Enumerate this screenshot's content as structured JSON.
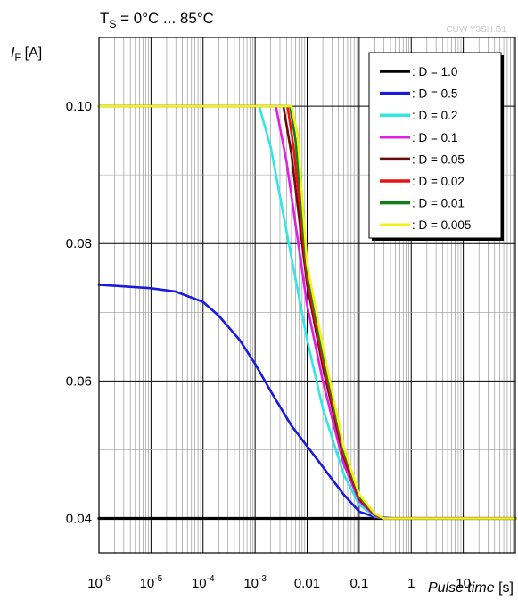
{
  "chart_data": {
    "type": "line",
    "title": "T",
    "title_subscript": "S",
    "title_suffix": " = 0°C ... 85°C",
    "watermark": "CUW Y3SH.B1",
    "ylabel": "I",
    "ylabel_subscript": "F",
    "ylabel_unit": " [A]",
    "xlabel": "Pulse time",
    "xlabel_unit": " [s]",
    "x_scale": "log",
    "xlim": [
      1e-06,
      100
    ],
    "ylim": [
      0.035,
      0.11
    ],
    "x_ticks": [
      {
        "value": 1e-06,
        "base": "10",
        "exp": "-6"
      },
      {
        "value": 1e-05,
        "base": "10",
        "exp": "-5"
      },
      {
        "value": 0.0001,
        "base": "10",
        "exp": "-4"
      },
      {
        "value": 0.001,
        "base": "10",
        "exp": "-3"
      },
      {
        "value": 0.01,
        "base": "0.01",
        "exp": ""
      },
      {
        "value": 0.1,
        "base": "0.1",
        "exp": ""
      },
      {
        "value": 1,
        "base": "1",
        "exp": ""
      },
      {
        "value": 10,
        "base": "10",
        "exp": ""
      }
    ],
    "y_ticks": [
      {
        "value": 0.04,
        "label": "0.04"
      },
      {
        "value": 0.06,
        "label": "0.06"
      },
      {
        "value": 0.08,
        "label": "0.08"
      },
      {
        "value": 0.1,
        "label": "0.10"
      }
    ],
    "grid": true,
    "legend_position": "top-right",
    "series": [
      {
        "name": ": D = 1.0",
        "color": "#000000",
        "x": [
          1e-06,
          100
        ],
        "y": [
          0.04,
          0.04
        ]
      },
      {
        "name": ": D = 0.5",
        "color": "#1a1adb",
        "x": [
          1e-06,
          1e-05,
          3e-05,
          0.0001,
          0.0002,
          0.0005,
          0.001,
          0.002,
          0.005,
          0.01,
          0.02,
          0.05,
          0.1,
          0.2,
          0.5,
          100
        ],
        "y": [
          0.074,
          0.0735,
          0.073,
          0.0715,
          0.0695,
          0.066,
          0.0625,
          0.0585,
          0.0535,
          0.0505,
          0.0475,
          0.0435,
          0.041,
          0.0402,
          0.04,
          0.04
        ]
      },
      {
        "name": ": D = 0.2",
        "color": "#33e6e6",
        "x": [
          1e-06,
          0.0012,
          0.002,
          0.005,
          0.01,
          0.02,
          0.05,
          0.1,
          0.2,
          0.3,
          100
        ],
        "y": [
          0.1,
          0.1,
          0.094,
          0.078,
          0.066,
          0.056,
          0.0465,
          0.042,
          0.0403,
          0.04,
          0.04
        ]
      },
      {
        "name": ": D = 0.1",
        "color": "#e020e0",
        "x": [
          1e-06,
          0.0025,
          0.004,
          0.01,
          0.02,
          0.05,
          0.1,
          0.2,
          0.3,
          100
        ],
        "y": [
          0.1,
          0.1,
          0.092,
          0.071,
          0.06,
          0.048,
          0.0425,
          0.0404,
          0.04,
          0.04
        ]
      },
      {
        "name": ": D = 0.05",
        "color": "#6b0d0d",
        "x": [
          1e-06,
          0.0035,
          0.005,
          0.01,
          0.02,
          0.05,
          0.1,
          0.2,
          0.3,
          100
        ],
        "y": [
          0.1,
          0.1,
          0.093,
          0.074,
          0.062,
          0.049,
          0.0428,
          0.0405,
          0.04,
          0.04
        ]
      },
      {
        "name": ": D = 0.02",
        "color": "#ee1111",
        "x": [
          1e-06,
          0.0042,
          0.0055,
          0.01,
          0.02,
          0.05,
          0.1,
          0.2,
          0.3,
          100
        ],
        "y": [
          0.1,
          0.1,
          0.094,
          0.075,
          0.063,
          0.0495,
          0.043,
          0.0405,
          0.04,
          0.04
        ]
      },
      {
        "name": ": D = 0.01",
        "color": "#128012",
        "x": [
          1e-06,
          0.0047,
          0.006,
          0.01,
          0.02,
          0.05,
          0.1,
          0.2,
          0.3,
          100
        ],
        "y": [
          0.1,
          0.1,
          0.095,
          0.076,
          0.064,
          0.05,
          0.0432,
          0.0406,
          0.04,
          0.04
        ]
      },
      {
        "name": ": D = 0.005",
        "color": "#f2f21a",
        "x": [
          1e-06,
          0.005,
          0.0065,
          0.01,
          0.02,
          0.05,
          0.1,
          0.2,
          0.3,
          100
        ],
        "y": [
          0.1,
          0.1,
          0.096,
          0.077,
          0.065,
          0.0505,
          0.0435,
          0.0407,
          0.04,
          0.04
        ]
      }
    ]
  }
}
